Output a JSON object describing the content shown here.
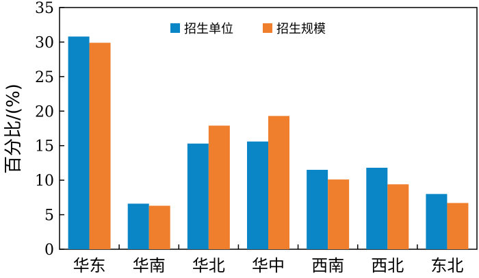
{
  "chart_data": {
    "type": "bar",
    "categories": [
      "华东",
      "华南",
      "华北",
      "华中",
      "西南",
      "西北",
      "东北"
    ],
    "series": [
      {
        "name": "招生单位",
        "color": "#0a86c7",
        "values": [
          30.8,
          6.6,
          15.3,
          15.6,
          11.5,
          11.8,
          8.0
        ]
      },
      {
        "name": "招生规模",
        "color": "#ef7f2c",
        "values": [
          29.9,
          6.3,
          17.9,
          19.3,
          10.1,
          9.4,
          6.7
        ]
      }
    ],
    "title": "",
    "xlabel": "",
    "ylabel": "百分比/(%)",
    "ylim": [
      0,
      35
    ],
    "yticks": [
      0,
      5,
      10,
      15,
      20,
      25,
      30,
      35
    ],
    "grid": false,
    "legend_position": "top-center"
  }
}
